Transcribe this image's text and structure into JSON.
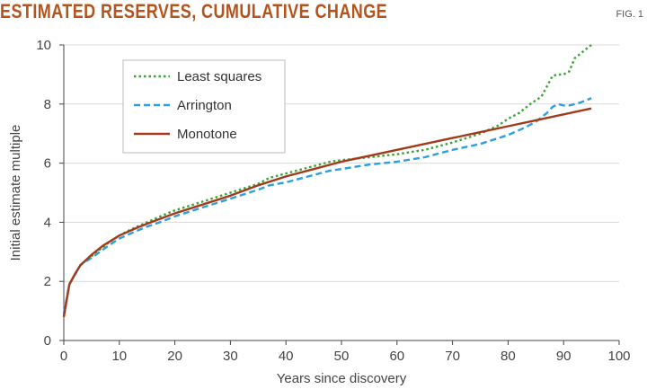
{
  "figure": {
    "title": "ESTIMATED RESERVES, CUMULATIVE CHANGE",
    "fig_label": "FIG. 1"
  },
  "chart_data": {
    "type": "line",
    "xlabel": "Years since discovery",
    "ylabel": "Initial estimate multiple",
    "xlim": [
      0,
      100
    ],
    "ylim": [
      0,
      10
    ],
    "xticks": [
      0,
      10,
      20,
      30,
      40,
      50,
      60,
      70,
      80,
      90,
      100
    ],
    "yticks": [
      0,
      2,
      4,
      6,
      8,
      10
    ],
    "grid": "horizontal",
    "legend_position": "top-left",
    "series": [
      {
        "name": "Least squares",
        "color": "#3aa335",
        "style": "dotted",
        "x": [
          0,
          1,
          3,
          5,
          8,
          10,
          12,
          15,
          18,
          20,
          25,
          30,
          35,
          37,
          40,
          45,
          48,
          50,
          55,
          60,
          65,
          70,
          75,
          78,
          80,
          82,
          84,
          86,
          87,
          88,
          89,
          90,
          91,
          92,
          93,
          95
        ],
        "y": [
          0.8,
          1.9,
          2.55,
          2.85,
          3.3,
          3.55,
          3.75,
          4.0,
          4.25,
          4.4,
          4.7,
          5.0,
          5.3,
          5.5,
          5.65,
          5.9,
          6.05,
          6.1,
          6.2,
          6.3,
          6.45,
          6.7,
          7.0,
          7.25,
          7.5,
          7.7,
          8.0,
          8.25,
          8.6,
          8.95,
          9.0,
          9.0,
          9.1,
          9.55,
          9.7,
          10.0
        ]
      },
      {
        "name": "Arrington",
        "color": "#2b9fe0",
        "style": "dashed",
        "x": [
          0,
          1,
          3,
          5,
          8,
          10,
          13,
          15,
          18,
          20,
          25,
          30,
          35,
          37,
          40,
          45,
          48,
          50,
          55,
          60,
          65,
          70,
          75,
          80,
          83,
          85,
          87,
          88,
          89,
          90,
          91,
          93,
          95
        ],
        "y": [
          0.9,
          1.9,
          2.55,
          2.8,
          3.2,
          3.45,
          3.7,
          3.85,
          4.05,
          4.2,
          4.5,
          4.8,
          5.1,
          5.25,
          5.35,
          5.6,
          5.75,
          5.8,
          5.95,
          6.05,
          6.2,
          6.45,
          6.65,
          6.95,
          7.2,
          7.4,
          7.7,
          7.9,
          8.0,
          7.95,
          7.95,
          8.05,
          8.2
        ]
      },
      {
        "name": "Monotone",
        "color": "#a33a1c",
        "style": "solid",
        "x": [
          0,
          1,
          2,
          3,
          5,
          7,
          10,
          13,
          15,
          20,
          25,
          30,
          35,
          40,
          45,
          50,
          55,
          60,
          65,
          70,
          75,
          80,
          85,
          90,
          95
        ],
        "y": [
          0.8,
          1.9,
          2.25,
          2.55,
          2.9,
          3.2,
          3.55,
          3.8,
          3.95,
          4.3,
          4.6,
          4.9,
          5.25,
          5.55,
          5.8,
          6.05,
          6.25,
          6.45,
          6.65,
          6.85,
          7.05,
          7.25,
          7.45,
          7.65,
          7.85
        ]
      }
    ]
  }
}
